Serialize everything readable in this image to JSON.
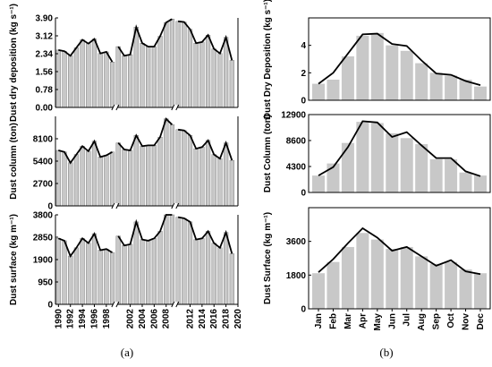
{
  "chart_data": [
    {
      "type": "bar",
      "panel": "(a)",
      "ylabel": "Dust dry deposition (kg s⁻¹)",
      "ylim": [
        0,
        3.9
      ],
      "yticks": [
        "0.00",
        "0.78",
        "1.56",
        "2.34",
        "3.12",
        "3.90"
      ],
      "xticks": [
        "1990",
        "1992",
        "1994",
        "1996",
        "1998",
        "2002",
        "2004",
        "2006",
        "2008",
        "2012",
        "2014",
        "2016",
        "2018",
        "2020"
      ],
      "segments": [
        {
          "x": [
            1990,
            1991,
            1992,
            1993,
            1994,
            1995,
            1996,
            1997,
            1998,
            1999
          ],
          "values": [
            2.5,
            2.45,
            2.25,
            2.6,
            2.95,
            2.78,
            2.98,
            2.35,
            2.42,
            1.98
          ]
        },
        {
          "x": [
            2000,
            2001,
            2002,
            2003,
            2004,
            2005,
            2006,
            2007,
            2008,
            2009
          ],
          "values": [
            2.65,
            2.25,
            2.3,
            3.5,
            2.8,
            2.65,
            2.65,
            3.1,
            3.7,
            3.85
          ]
        },
        {
          "x": [
            2010,
            2011,
            2012,
            2013,
            2014,
            2015,
            2016,
            2017,
            2018,
            2019
          ],
          "values": [
            3.75,
            3.72,
            3.4,
            2.8,
            2.85,
            3.15,
            2.55,
            2.35,
            3.05,
            2.05
          ]
        }
      ]
    },
    {
      "type": "bar",
      "panel": "(a)",
      "ylabel": "Dust column (ton)",
      "ylim": [
        0,
        10800
      ],
      "yticks": [
        "0",
        "2700",
        "5400",
        "8100"
      ],
      "segments": [
        {
          "x": [
            1990,
            1991,
            1992,
            1993,
            1994,
            1995,
            1996,
            1997,
            1998,
            1999
          ],
          "values": [
            6700,
            6500,
            5200,
            6200,
            7200,
            6600,
            7800,
            5900,
            6100,
            6500
          ]
        },
        {
          "x": [
            2000,
            2001,
            2002,
            2003,
            2004,
            2005,
            2006,
            2007,
            2008,
            2009
          ],
          "values": [
            7600,
            6800,
            6700,
            8500,
            7200,
            7300,
            7300,
            8300,
            10500,
            9800
          ]
        },
        {
          "x": [
            2010,
            2011,
            2012,
            2013,
            2014,
            2015,
            2016,
            2017,
            2018,
            2019
          ],
          "values": [
            9200,
            9100,
            8500,
            6900,
            7100,
            7900,
            6200,
            5700,
            7600,
            5500
          ]
        }
      ]
    },
    {
      "type": "bar",
      "panel": "(a)",
      "ylabel": "Dust surface  (kg m⁻¹)",
      "ylim": [
        0,
        3800
      ],
      "yticks": [
        "0",
        "950",
        "1900",
        "2850",
        "3800"
      ],
      "segments": [
        {
          "x": [
            1990,
            1991,
            1992,
            1993,
            1994,
            1995,
            1996,
            1997,
            1998,
            1999
          ],
          "values": [
            2800,
            2700,
            2050,
            2400,
            2800,
            2600,
            3000,
            2300,
            2350,
            2200
          ]
        },
        {
          "x": [
            2000,
            2001,
            2002,
            2003,
            2004,
            2005,
            2006,
            2007,
            2008,
            2009
          ],
          "values": [
            2900,
            2500,
            2550,
            3500,
            2750,
            2700,
            2800,
            3100,
            3800,
            3800
          ]
        },
        {
          "x": [
            2010,
            2011,
            2012,
            2013,
            2014,
            2015,
            2016,
            2017,
            2018,
            2019
          ],
          "values": [
            3700,
            3650,
            3500,
            2750,
            2800,
            3100,
            2600,
            2400,
            3050,
            2150
          ]
        }
      ]
    },
    {
      "type": "bar",
      "panel": "(b)",
      "ylabel": "Dust Dry Deposition (kg s⁻¹)",
      "categories": [
        "Jan",
        "Feb",
        "Mar",
        "Apr",
        "May",
        "Jun",
        "Jul",
        "Aug",
        "Sep",
        "Oct",
        "Nov",
        "Dec"
      ],
      "ylim": [
        0,
        6
      ],
      "yticks": [
        "0",
        "2",
        "4"
      ],
      "bars": [
        1.2,
        1.5,
        3.2,
        4.7,
        4.9,
        4.0,
        3.6,
        2.7,
        2.0,
        1.8,
        1.5,
        1.0
      ],
      "line": [
        1.2,
        2.0,
        3.4,
        4.8,
        4.85,
        4.1,
        3.95,
        2.9,
        1.95,
        1.85,
        1.4,
        1.1
      ]
    },
    {
      "type": "bar",
      "panel": "(b)",
      "ylabel": "Dust Column (ton)",
      "categories": [
        "Jan",
        "Feb",
        "Mar",
        "Apr",
        "May",
        "Jun",
        "Jul",
        "Aug",
        "Sep",
        "Oct",
        "Nov",
        "Dec"
      ],
      "ylim": [
        0,
        12900
      ],
      "yticks": [
        "0",
        "4300",
        "8600",
        "12900"
      ],
      "bars": [
        2800,
        4800,
        8200,
        11700,
        11500,
        9800,
        9000,
        8000,
        5500,
        5500,
        3300,
        2800
      ],
      "line": [
        2800,
        4200,
        7500,
        11800,
        11600,
        9200,
        10000,
        7800,
        5700,
        5700,
        3500,
        2700
      ]
    },
    {
      "type": "bar",
      "panel": "(b)",
      "ylabel": "Dust Surface  (kg m⁻¹)",
      "categories": [
        "Jan",
        "Feb",
        "Mar",
        "Apr",
        "May",
        "Jun",
        "Jul",
        "Aug",
        "Sep",
        "Oct",
        "Nov",
        "Dec"
      ],
      "ylim": [
        0,
        5400
      ],
      "yticks": [
        "0",
        "1800",
        "3600"
      ],
      "bars": [
        1900,
        2500,
        3300,
        4050,
        3700,
        3200,
        3300,
        2800,
        2400,
        2500,
        2100,
        1900
      ],
      "line": [
        1950,
        2650,
        3500,
        4300,
        3800,
        3100,
        3300,
        2800,
        2300,
        2600,
        2000,
        1850
      ]
    }
  ],
  "labels": {
    "panel_a": "(a)",
    "panel_b": "(b)"
  }
}
